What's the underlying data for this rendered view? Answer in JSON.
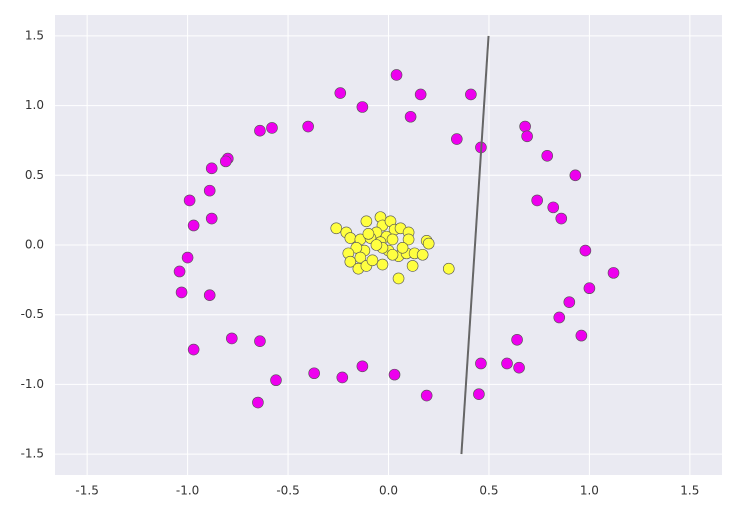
{
  "chart_data": {
    "type": "scatter",
    "xlim": [
      -1.66,
      1.66
    ],
    "ylim": [
      -1.65,
      1.65
    ],
    "xticks": [
      -1.5,
      {
        "value": -1,
        "label": "-1.0"
      },
      -0.5,
      {
        "value": 0,
        "label": "0.0"
      },
      0.5,
      {
        "value": 1,
        "label": "1.0"
      },
      1.5
    ],
    "yticks": [
      -1.5,
      {
        "value": -1,
        "label": "-1.0"
      },
      -0.5,
      {
        "value": 0,
        "label": "0.0"
      },
      0.5,
      {
        "value": 1,
        "label": "1.0"
      },
      1.5
    ],
    "grid": true,
    "series": [
      {
        "type": "scatter",
        "color": "#ee00ee",
        "x": [
          0.04,
          -0.24,
          0.16,
          0.41,
          -0.13,
          0.11,
          -0.58,
          -0.64,
          -0.4,
          0.68,
          0.69,
          0.34,
          0.46,
          0.79,
          -0.8,
          -0.81,
          -0.88,
          0.93,
          -0.89,
          -0.99,
          0.74,
          0.82,
          0.86,
          -0.88,
          -0.97,
          0.98,
          -1.0,
          -1.04,
          1.12,
          -1.03,
          -0.89,
          1.0,
          0.9,
          0.85,
          -0.78,
          -0.64,
          0.64,
          0.96,
          -0.97,
          0.46,
          0.59,
          0.65,
          -0.13,
          -0.37,
          -0.56,
          -0.23,
          0.03,
          0.45,
          0.19,
          -0.65
        ],
        "y": [
          1.22,
          1.09,
          1.08,
          1.08,
          0.99,
          0.92,
          0.84,
          0.82,
          0.85,
          0.85,
          0.78,
          0.76,
          0.7,
          0.64,
          0.62,
          0.6,
          0.55,
          0.5,
          0.39,
          0.32,
          0.32,
          0.27,
          0.19,
          0.19,
          0.14,
          -0.04,
          -0.09,
          -0.19,
          -0.2,
          -0.34,
          -0.36,
          -0.31,
          -0.41,
          -0.52,
          -0.67,
          -0.69,
          -0.68,
          -0.65,
          -0.75,
          -0.85,
          -0.85,
          -0.88,
          -0.87,
          -0.92,
          -0.97,
          -0.95,
          -0.93,
          -1.07,
          -1.08,
          -1.13
        ]
      },
      {
        "type": "scatter",
        "color": "#ffff40",
        "x": [
          -0.26,
          -0.21,
          -0.19,
          -0.14,
          -0.11,
          -0.04,
          -0.03,
          0.01,
          0.03,
          0.06,
          0.1,
          0.1,
          -0.06,
          -0.01,
          -0.09,
          -0.04,
          0.02,
          -0.1,
          -0.12,
          -0.16,
          -0.2,
          -0.19,
          -0.14,
          -0.15,
          -0.11,
          -0.08,
          -0.03,
          0.0,
          0.05,
          0.09,
          0.02,
          0.07,
          0.13,
          0.17,
          0.12,
          0.05,
          0.19,
          0.2,
          0.3,
          -0.03,
          -0.06
        ],
        "y": [
          0.12,
          0.09,
          0.05,
          0.04,
          0.17,
          0.2,
          0.14,
          0.17,
          0.11,
          0.12,
          0.09,
          0.04,
          0.09,
          0.06,
          0.05,
          0.02,
          0.04,
          0.08,
          -0.04,
          -0.02,
          -0.06,
          -0.12,
          -0.09,
          -0.17,
          -0.15,
          -0.11,
          -0.14,
          -0.04,
          -0.08,
          -0.06,
          -0.07,
          -0.02,
          -0.06,
          -0.07,
          -0.15,
          -0.24,
          0.03,
          0.01,
          -0.17,
          -0.02,
          0.0
        ]
      },
      {
        "type": "line",
        "color": "#666666",
        "x": [
          0.498,
          0.363
        ],
        "y": [
          1.5,
          -1.5
        ]
      }
    ]
  }
}
